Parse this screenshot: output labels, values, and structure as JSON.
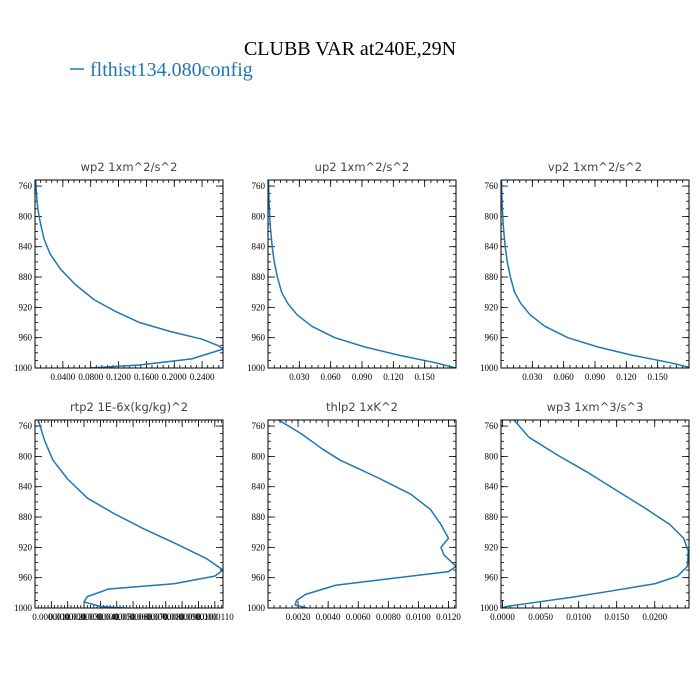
{
  "title": "CLUBB VAR at240E,29N",
  "legend": {
    "label": "flthist134.080config",
    "color": "#1f77b4"
  },
  "chart_data": [
    {
      "type": "line",
      "title": "wp2  1xm^2/s^2",
      "xlim": [
        0.0,
        0.27
      ],
      "ylim": [
        1000,
        752
      ],
      "y_inverted": true,
      "xticks": [
        0.04,
        0.08,
        0.12,
        0.16,
        0.2,
        0.24
      ],
      "xtick_labels": [
        "0.0400",
        "0.0800",
        "0.1200",
        "0.1600",
        "0.2000",
        "0.2400"
      ],
      "yticks": [
        760,
        800,
        840,
        880,
        920,
        960,
        1000
      ],
      "ytick_labels": [
        "760",
        "800",
        "840",
        "880",
        "920",
        "960",
        "1000"
      ],
      "series": [
        {
          "color": "#1f77b4",
          "x": [
            0.001,
            0.002,
            0.004,
            0.008,
            0.013,
            0.022,
            0.037,
            0.058,
            0.085,
            0.115,
            0.15,
            0.195,
            0.24,
            0.262,
            0.27,
            0.225,
            0.15,
            0.08
          ],
          "y": [
            752,
            770,
            790,
            810,
            830,
            850,
            870,
            890,
            910,
            925,
            940,
            952,
            962,
            970,
            975,
            988,
            996,
            1000
          ]
        }
      ]
    },
    {
      "type": "line",
      "title": "up2  1xm^2/s^2",
      "xlim": [
        0.0,
        0.18
      ],
      "ylim": [
        1000,
        752
      ],
      "y_inverted": true,
      "xticks": [
        0.03,
        0.06,
        0.09,
        0.12,
        0.15
      ],
      "xtick_labels": [
        "0.030",
        "0.060",
        "0.090",
        "0.120",
        "0.150"
      ],
      "yticks": [
        760,
        800,
        840,
        880,
        920,
        960,
        1000
      ],
      "ytick_labels": [
        "760",
        "800",
        "840",
        "880",
        "920",
        "960",
        "1000"
      ],
      "series": [
        {
          "color": "#1f77b4",
          "x": [
            0.0005,
            0.001,
            0.002,
            0.004,
            0.006,
            0.009,
            0.013,
            0.019,
            0.028,
            0.042,
            0.064,
            0.092,
            0.125,
            0.16,
            0.18
          ],
          "y": [
            752,
            780,
            810,
            840,
            860,
            880,
            900,
            915,
            930,
            945,
            960,
            972,
            983,
            993,
            1000
          ]
        }
      ]
    },
    {
      "type": "line",
      "title": "vp2  1xm^2/s^2",
      "xlim": [
        0.0,
        0.18
      ],
      "ylim": [
        1000,
        752
      ],
      "y_inverted": true,
      "xticks": [
        0.03,
        0.06,
        0.09,
        0.12,
        0.15
      ],
      "xtick_labels": [
        "0.030",
        "0.060",
        "0.090",
        "0.120",
        "0.150"
      ],
      "yticks": [
        760,
        800,
        840,
        880,
        920,
        960,
        1000
      ],
      "ytick_labels": [
        "760",
        "800",
        "840",
        "880",
        "920",
        "960",
        "1000"
      ],
      "series": [
        {
          "color": "#1f77b4",
          "x": [
            0.0005,
            0.001,
            0.002,
            0.004,
            0.006,
            0.009,
            0.013,
            0.019,
            0.028,
            0.042,
            0.064,
            0.092,
            0.125,
            0.162,
            0.18
          ],
          "y": [
            752,
            780,
            810,
            840,
            860,
            880,
            900,
            915,
            930,
            945,
            960,
            972,
            983,
            993,
            999
          ]
        }
      ]
    },
    {
      "type": "line",
      "title": "rtp2  1E-6x(kg/kg)^2",
      "xlim": [
        0.0,
        1.15e-05
      ],
      "ylim": [
        1000,
        752
      ],
      "y_inverted": true,
      "xticks": [
        1e-06,
        2e-06,
        3e-06,
        4e-06,
        5e-06,
        6e-06,
        7e-06,
        8e-06,
        9e-06,
        1e-05,
        1.1e-05
      ],
      "xtick_labels": [
        "0.0000010",
        "0.0000020",
        "0.0000030",
        "0.0000040",
        "0.0000050",
        "0.0000060",
        "0.0000070",
        "0.0000080",
        "0.0000090",
        "0.0000100",
        "0.0000110"
      ],
      "yticks": [
        760,
        800,
        840,
        880,
        920,
        960,
        1000
      ],
      "ytick_labels": [
        "760",
        "800",
        "840",
        "880",
        "920",
        "960",
        "1000"
      ],
      "series": [
        {
          "color": "#1f77b4",
          "x": [
            2e-07,
            6e-07,
            1.1e-06,
            2e-06,
            3.2e-06,
            4.8e-06,
            6.6e-06,
            8.6e-06,
            1.05e-05,
            1.15e-05,
            1.1e-05,
            8.5e-06,
            4.5e-06,
            3.2e-06,
            3e-06,
            4e-06,
            5.5e-06
          ],
          "y": [
            752,
            780,
            805,
            830,
            855,
            875,
            895,
            915,
            935,
            950,
            958,
            968,
            975,
            985,
            992,
            998,
            1000
          ]
        }
      ]
    },
    {
      "type": "line",
      "title": "thlp2  1xK^2",
      "xlim": [
        0.0,
        0.0125
      ],
      "ylim": [
        1000,
        752
      ],
      "y_inverted": true,
      "xticks": [
        0.002,
        0.004,
        0.006,
        0.008,
        0.01,
        0.012
      ],
      "xtick_labels": [
        "0.0020",
        "0.0040",
        "0.0060",
        "0.0080",
        "0.0100",
        "0.0120"
      ],
      "yticks": [
        760,
        800,
        840,
        880,
        920,
        960,
        1000
      ],
      "ytick_labels": [
        "760",
        "800",
        "840",
        "880",
        "920",
        "960",
        "1000"
      ],
      "series": [
        {
          "color": "#1f77b4",
          "x": [
            0.0007,
            0.0022,
            0.0036,
            0.0048,
            0.0075,
            0.0095,
            0.0108,
            0.0115,
            0.012,
            0.0115,
            0.0117,
            0.0125,
            0.012,
            0.0045,
            0.0025,
            0.0019,
            0.0018,
            0.0026
          ],
          "y": [
            752,
            770,
            790,
            805,
            830,
            850,
            870,
            890,
            908,
            920,
            930,
            945,
            952,
            970,
            982,
            990,
            996,
            1000
          ]
        }
      ]
    },
    {
      "type": "line",
      "title": "wp3  1xm^3/s^3",
      "xlim": [
        -0.0002,
        0.0245
      ],
      "ylim": [
        1000,
        752
      ],
      "y_inverted": true,
      "xticks": [
        0.0,
        0.005,
        0.01,
        0.015,
        0.02
      ],
      "xtick_labels": [
        "0.0000",
        "0.0050",
        "0.0100",
        "0.0150",
        "0.0200"
      ],
      "yticks": [
        760,
        800,
        840,
        880,
        920,
        960,
        1000
      ],
      "ytick_labels": [
        "760",
        "800",
        "840",
        "880",
        "920",
        "960",
        "1000"
      ],
      "series": [
        {
          "color": "#1f77b4",
          "x": [
            0.0015,
            0.0035,
            0.0075,
            0.011,
            0.015,
            0.019,
            0.022,
            0.0238,
            0.0244,
            0.0243,
            0.023,
            0.02,
            0.014,
            0.009,
            0.004,
            0.0005,
            0.0
          ],
          "y": [
            752,
            775,
            800,
            820,
            845,
            870,
            890,
            908,
            925,
            945,
            958,
            968,
            978,
            986,
            993,
            998,
            1000
          ]
        }
      ]
    }
  ]
}
